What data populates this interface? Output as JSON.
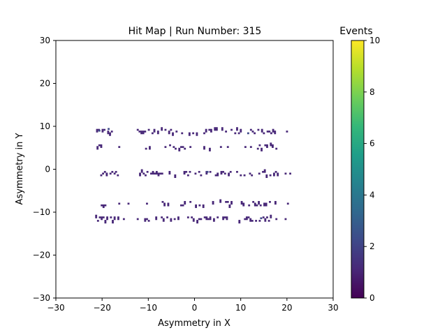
{
  "chart_data": {
    "type": "heatmap",
    "title": "Hit Map | Run Number: 315",
    "xlabel": "Asymmetry in X",
    "ylabel": "Asymmetry in Y",
    "xlim": [
      -30,
      30
    ],
    "ylim": [
      -30,
      30
    ],
    "x_ticks": [
      "−30",
      "−20",
      "−10",
      "0",
      "10",
      "20",
      "30"
    ],
    "y_ticks": [
      "−30",
      "−20",
      "−10",
      "0",
      "10",
      "20",
      "30"
    ],
    "x_tick_values": [
      -30,
      -20,
      -10,
      0,
      10,
      20,
      30
    ],
    "y_tick_values": [
      -30,
      -20,
      -10,
      0,
      10,
      20,
      30
    ],
    "grid": false,
    "colorbar": {
      "label": "Events",
      "range": [
        0,
        10
      ],
      "ticks": [
        "0",
        "2",
        "4",
        "6",
        "8",
        "10"
      ],
      "tick_values": [
        0,
        2,
        4,
        6,
        8,
        10
      ],
      "colormap": [
        "#440154",
        "#482878",
        "#3e4989",
        "#31688e",
        "#26828e",
        "#1f9e89",
        "#35b779",
        "#6ece58",
        "#b5de2b",
        "#fde725"
      ]
    },
    "bin_size": 0.4,
    "hit_bands": [
      {
        "y": 8.6,
        "segments": [
          [
            -22.5,
            -16.8
          ],
          [
            -12.5,
            -7.2
          ],
          [
            -6.5,
            2.5
          ],
          [
            3.0,
            11.5
          ],
          [
            12.0,
            17.8
          ]
        ],
        "sparse": [
          19.8
        ]
      },
      {
        "y": 5.0,
        "segments": [
          [
            -21.2,
            -20.2
          ],
          [
            -11.5,
            -9.5
          ],
          [
            -5.5,
            -1.0
          ],
          [
            1.5,
            3.5
          ],
          [
            10.0,
            12.5
          ],
          [
            13.5,
            17.5
          ]
        ],
        "sparse": [
          -16.5,
          -6.5,
          5.5,
          7.0
        ]
      },
      {
        "y": -1.2,
        "segments": [
          [
            -22.0,
            -15.5
          ],
          [
            -12.0,
            -7.0
          ],
          [
            -6.0,
            8.0
          ],
          [
            9.0,
            18.5
          ]
        ],
        "sparse": [
          -17.5,
          19.5,
          20.5
        ]
      },
      {
        "y": -8.2,
        "segments": [
          [
            -21.5,
            -19.5
          ],
          [
            -7.5,
            -5.5
          ],
          [
            -3.5,
            2.0
          ],
          [
            3.0,
            8.0
          ],
          [
            10.0,
            12.0
          ],
          [
            12.5,
            17.5
          ]
        ],
        "sparse": [
          -16.5,
          -14.5,
          -10.5,
          20.0
        ]
      },
      {
        "y": -11.8,
        "segments": [
          [
            -21.5,
            -16.5
          ],
          [
            -12.5,
            -2.5
          ],
          [
            -2.0,
            7.5
          ],
          [
            9.5,
            16.5
          ]
        ],
        "sparse": [
          -15.5,
          17.5,
          19.5
        ]
      }
    ],
    "notable_bins": [
      {
        "x": -18.8,
        "y": 9.2,
        "value": 2
      },
      {
        "x": 2.6,
        "y": -0.8,
        "value": 2
      },
      {
        "x": 11.4,
        "y": 8.2,
        "value": 2
      },
      {
        "x": -20.8,
        "y": 8.8,
        "value": 2
      },
      {
        "x": 14.2,
        "y": -11.6,
        "value": 2
      }
    ],
    "max_value": 10
  }
}
